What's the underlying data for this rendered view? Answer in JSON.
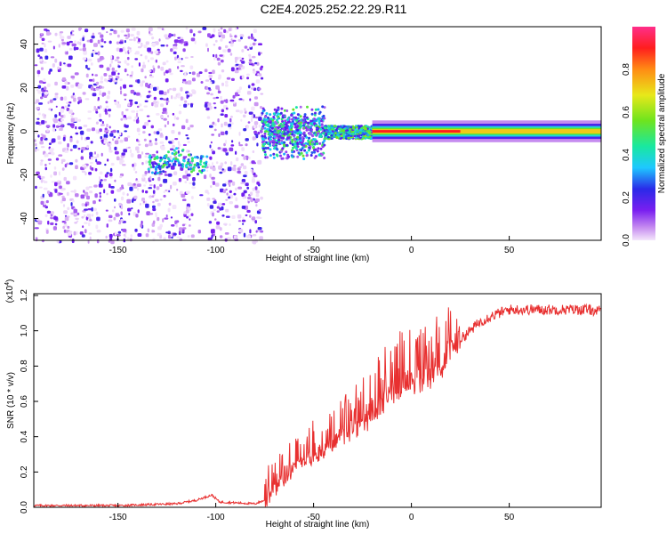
{
  "figure_title": "C2E4.2025.252.22.29.R11",
  "chart_data": [
    {
      "type": "heatmap",
      "title": "C2E4.2025.252.22.29.R11",
      "xlabel": "Height of straight line (km)",
      "ylabel": "Frequency (Hz)",
      "xlim": [
        -193,
        97
      ],
      "ylim": [
        -50,
        48
      ],
      "xticks": [
        -150,
        -100,
        -50,
        0,
        50
      ],
      "xtick_labels": [
        "-150",
        "-100",
        "-50",
        "0",
        "50"
      ],
      "yticks": [
        -40,
        -20,
        0,
        20,
        40
      ],
      "ytick_labels": [
        "-40",
        "-20",
        "0",
        "20",
        "40"
      ],
      "colorbar": {
        "label": "Normalized spectral amplitude",
        "range": [
          0,
          1
        ],
        "ticks": [
          0.0,
          0.2,
          0.4,
          0.6,
          0.8
        ],
        "tick_labels": [
          "0.0",
          "0.2",
          "0.4",
          "0.6",
          "0.8"
        ],
        "colormap": [
          "#f4e6fb",
          "#c68cf0",
          "#7a1ff0",
          "#2a2ae8",
          "#1ec8ff",
          "#19e8a0",
          "#6ee41e",
          "#e8e81a",
          "#ff8c14",
          "#ff1e1e",
          "#ff2e8a"
        ]
      },
      "regions": [
        {
          "name": "noise",
          "x_range": [
            -193,
            -77
          ],
          "freq_range": [
            -50,
            48
          ],
          "amplitude": 0.12
        },
        {
          "name": "onset",
          "x_range": [
            -77,
            -45
          ],
          "freq_range": [
            -15,
            12
          ],
          "amplitude": 0.3
        },
        {
          "name": "narrowing",
          "x_range": [
            -45,
            -20
          ],
          "freq_center": 0,
          "freq_halfwidth": 3,
          "amplitude": 0.4
        },
        {
          "name": "tone",
          "x_range": [
            -20,
            97
          ],
          "freq_center": 0,
          "freq_halfwidth": 1.5,
          "amplitude": 0.9
        }
      ],
      "feature": {
        "name": "weak band",
        "x_range": [
          -135,
          -105
        ],
        "freq_center": -13,
        "amplitude": 0.45
      }
    },
    {
      "type": "line",
      "xlabel": "Height of straight line (km)",
      "ylabel": "SNR (10 * v/v)",
      "yscale_label": "(x10^4)",
      "xlim": [
        -193,
        97
      ],
      "ylim": [
        0,
        1.21
      ],
      "xticks": [
        -150,
        -100,
        -50,
        0,
        50
      ],
      "xtick_labels": [
        "-150",
        "-100",
        "-50",
        "0",
        "50"
      ],
      "yticks": [
        0.0,
        0.2,
        0.4,
        0.6,
        0.8,
        1.0,
        1.2
      ],
      "ytick_labels": [
        "0.0",
        "0.2",
        "0.4",
        "0.6",
        "0.8",
        "1.0",
        "1.2"
      ],
      "series": [
        {
          "name": "SNR",
          "color": "#e83030",
          "x": [
            -193,
            -150,
            -120,
            -110,
            -102,
            -98,
            -80,
            -75,
            -70,
            -60,
            -50,
            -40,
            -30,
            -20,
            -15,
            -10,
            -5,
            0,
            5,
            10,
            15,
            20,
            25,
            30,
            35,
            40,
            45,
            50,
            60,
            70,
            80,
            90,
            97
          ],
          "values": [
            0.01,
            0.01,
            0.02,
            0.04,
            0.07,
            0.03,
            0.02,
            0.04,
            0.1,
            0.22,
            0.3,
            0.36,
            0.44,
            0.52,
            0.6,
            0.66,
            0.7,
            0.72,
            0.72,
            0.75,
            0.8,
            0.88,
            0.95,
            1.0,
            1.05,
            1.08,
            1.1,
            1.12,
            1.12,
            1.12,
            1.12,
            1.12,
            1.11
          ]
        }
      ]
    }
  ]
}
